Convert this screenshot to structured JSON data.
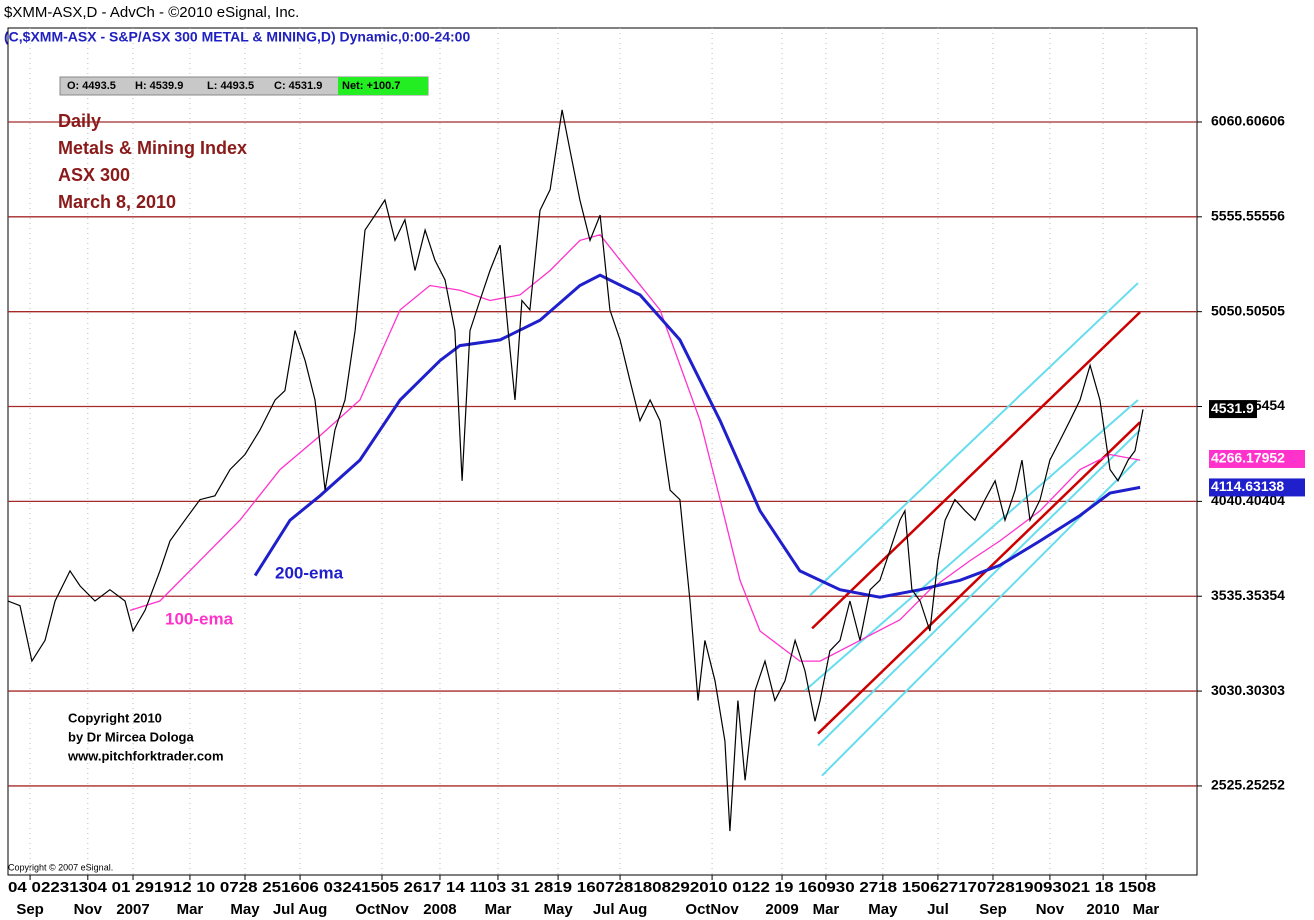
{
  "chart_data": {
    "type": "line",
    "title": "$XMM-ASX,D - AdvCh - ©2010 eSignal, Inc.",
    "subtitle": "(C,$XMM-ASX - S&P/ASX 300 METAL & MINING,D) Dynamic,0:00-24:00",
    "ohlc": [
      "O: 4493.5",
      "H: 4539.9",
      "L: 4493.5",
      "C: 4531.9",
      "Net: +100.7"
    ],
    "annotations": [
      "Daily",
      "Metals & Mining Index",
      "ASX 300",
      "March 8, 2010"
    ],
    "series_notes": [
      "200-ema",
      "100-ema"
    ],
    "copyright": [
      "Copyright 2010",
      "by Dr Mircea Dologa",
      "www.pitchforktrader.com"
    ],
    "source": "Copyright © 2007 eSignal.",
    "x_day_labels": "04 02231304 01 291912 10 0728 251606 03241505 2617 14 1103 31 2819 1607281808292010 0122 19 160930 2718 15062717072819093021 18 1508",
    "xlim": [
      0,
      44.7
    ],
    "xticks": [
      {
        "value": 0.83,
        "label": "Sep"
      },
      {
        "value": 3.0,
        "label": "Nov"
      },
      {
        "value": 4.7,
        "label": "2007"
      },
      {
        "value": 6.84,
        "label": "Mar"
      },
      {
        "value": 8.91,
        "label": "May"
      },
      {
        "value": 10.98,
        "label": "Jul Aug"
      },
      {
        "value": 14.06,
        "label": "OctNov"
      },
      {
        "value": 16.24,
        "label": "2008"
      },
      {
        "value": 18.42,
        "label": "Mar"
      },
      {
        "value": 20.68,
        "label": "May"
      },
      {
        "value": 23.01,
        "label": "Jul Aug"
      },
      {
        "value": 26.47,
        "label": "OctNov"
      },
      {
        "value": 29.1,
        "label": "2009"
      },
      {
        "value": 30.75,
        "label": "Mar"
      },
      {
        "value": 32.89,
        "label": "May"
      },
      {
        "value": 34.96,
        "label": "Jul"
      },
      {
        "value": 37.03,
        "label": "Sep"
      },
      {
        "value": 39.17,
        "label": "Nov"
      },
      {
        "value": 41.17,
        "label": "2010"
      },
      {
        "value": 42.78,
        "label": "Mar"
      }
    ],
    "ylim": [
      2051,
      6561
    ],
    "yticks": [
      2525.25252,
      3030.30303,
      3535.35354,
      4040.40404,
      4545.45454,
      5050.50505,
      5555.55556,
      6060.60606
    ],
    "grid": true,
    "grid_color": "#a52a2a",
    "series": [
      {
        "name": "price",
        "color": "#000000",
        "last": 4531.9,
        "x": [
          0,
          0.45,
          0.9,
          1.39,
          1.77,
          2.33,
          2.71,
          3.27,
          3.83,
          4.4,
          4.7,
          5.15,
          5.71,
          6.09,
          6.65,
          7.22,
          7.78,
          8.35,
          8.91,
          9.47,
          10.04,
          10.41,
          10.79,
          11.17,
          11.54,
          11.92,
          12.29,
          12.67,
          13.05,
          13.42,
          13.8,
          14.17,
          14.55,
          14.92,
          15.3,
          15.68,
          16.05,
          16.43,
          16.8,
          17.07,
          17.37,
          17.74,
          18.12,
          18.5,
          18.8,
          19.06,
          19.32,
          19.62,
          20,
          20.38,
          20.83,
          21.13,
          21.5,
          21.88,
          22.26,
          22.63,
          23.01,
          23.38,
          23.76,
          24.14,
          24.51,
          24.89,
          25.26,
          25.64,
          25.94,
          26.2,
          26.58,
          26.95,
          27.14,
          27.44,
          27.71,
          28.08,
          28.46,
          28.83,
          29.21,
          29.59,
          29.96,
          30.34,
          30.53,
          30.9,
          31.28,
          31.65,
          32.03,
          32.41,
          32.78,
          33.16,
          33.53,
          33.72,
          33.98,
          34.29,
          34.66,
          34.96,
          35.23,
          35.6,
          35.98,
          36.35,
          36.73,
          37.11,
          37.48,
          37.86,
          38.12,
          38.42,
          38.8,
          39.17,
          39.55,
          39.92,
          40.3,
          40.68,
          41.05,
          41.43,
          41.73,
          42.11,
          42.37,
          42.67
        ],
        "values": [
          3510,
          3485,
          3190,
          3300,
          3510,
          3670,
          3590,
          3510,
          3570,
          3510,
          3350,
          3460,
          3670,
          3830,
          3940,
          4050,
          4070,
          4210,
          4290,
          4420,
          4580,
          4630,
          4950,
          4790,
          4580,
          4100,
          4420,
          4580,
          4950,
          5485,
          5565,
          5645,
          5430,
          5540,
          5270,
          5485,
          5325,
          5220,
          4950,
          4150,
          4950,
          5110,
          5270,
          5405,
          4950,
          4580,
          5110,
          5060,
          5590,
          5700,
          6125,
          5910,
          5645,
          5430,
          5565,
          5060,
          4900,
          4685,
          4470,
          4580,
          4470,
          4100,
          4050,
          3510,
          2980,
          3300,
          3085,
          2765,
          2285,
          2980,
          2555,
          3030,
          3190,
          2980,
          3085,
          3300,
          3140,
          2870,
          2980,
          3245,
          3300,
          3510,
          3300,
          3570,
          3620,
          3780,
          3940,
          3990,
          3570,
          3510,
          3350,
          3725,
          3940,
          4050,
          3990,
          3940,
          4050,
          4150,
          3940,
          4100,
          4260,
          3940,
          4050,
          4260,
          4365,
          4470,
          4580,
          4765,
          4580,
          4210,
          4150,
          4260,
          4310,
          4530
        ]
      },
      {
        "name": "100-ema",
        "color": "#ff33cc",
        "last": 4266.17952,
        "x": [
          4.59,
          5.71,
          7.22,
          8.72,
          10.23,
          11.73,
          13.23,
          14.74,
          15.86,
          16.99,
          18.12,
          19.25,
          20.38,
          21.5,
          22.26,
          23.01,
          24.51,
          26.02,
          26.77,
          27.52,
          28.27,
          29.77,
          30.53,
          32.03,
          33.53,
          34.66,
          36.17,
          37.29,
          38.8,
          40.3,
          41.43,
          42.56
        ],
        "values": [
          3460,
          3510,
          3725,
          3940,
          4210,
          4390,
          4580,
          5060,
          5190,
          5165,
          5110,
          5140,
          5270,
          5430,
          5460,
          5325,
          5060,
          4470,
          4050,
          3620,
          3350,
          3190,
          3190,
          3300,
          3410,
          3570,
          3725,
          3830,
          3990,
          4210,
          4290,
          4260
        ]
      },
      {
        "name": "200-ema",
        "color": "#1f1fcc",
        "last": 4114.63138,
        "x": [
          9.29,
          10.6,
          11.73,
          13.23,
          14.74,
          16.24,
          16.99,
          18.5,
          20,
          21.5,
          22.26,
          23.76,
          25.26,
          26.77,
          28.27,
          29.77,
          31.28,
          32.78,
          34.29,
          35.79,
          37.29,
          38.8,
          40.3,
          41.43,
          42.56
        ],
        "values": [
          3645,
          3940,
          4070,
          4260,
          4580,
          4790,
          4870,
          4900,
          5005,
          5190,
          5245,
          5140,
          4900,
          4470,
          3990,
          3670,
          3570,
          3530,
          3570,
          3620,
          3700,
          3830,
          3965,
          4085,
          4115
        ]
      }
    ],
    "channel_lines": [
      {
        "color": "#cc0000",
        "x": [
          30.23,
          42.56
        ],
        "values": [
          3364,
          5048
        ]
      },
      {
        "color": "#cc0000",
        "x": [
          30.45,
          42.56
        ],
        "values": [
          2804,
          4462
        ]
      },
      {
        "color": "#66ddee",
        "x": [
          30.15,
          42.48
        ],
        "values": [
          3540,
          5203
        ]
      },
      {
        "color": "#66ddee",
        "x": [
          29.96,
          42.48
        ],
        "values": [
          3033,
          4580
        ]
      },
      {
        "color": "#66ddee",
        "x": [
          30.45,
          42.56
        ],
        "values": [
          2740,
          4420
        ]
      },
      {
        "color": "#66ddee",
        "x": [
          30.6,
          42.44
        ],
        "values": [
          2580,
          4260
        ]
      }
    ]
  }
}
